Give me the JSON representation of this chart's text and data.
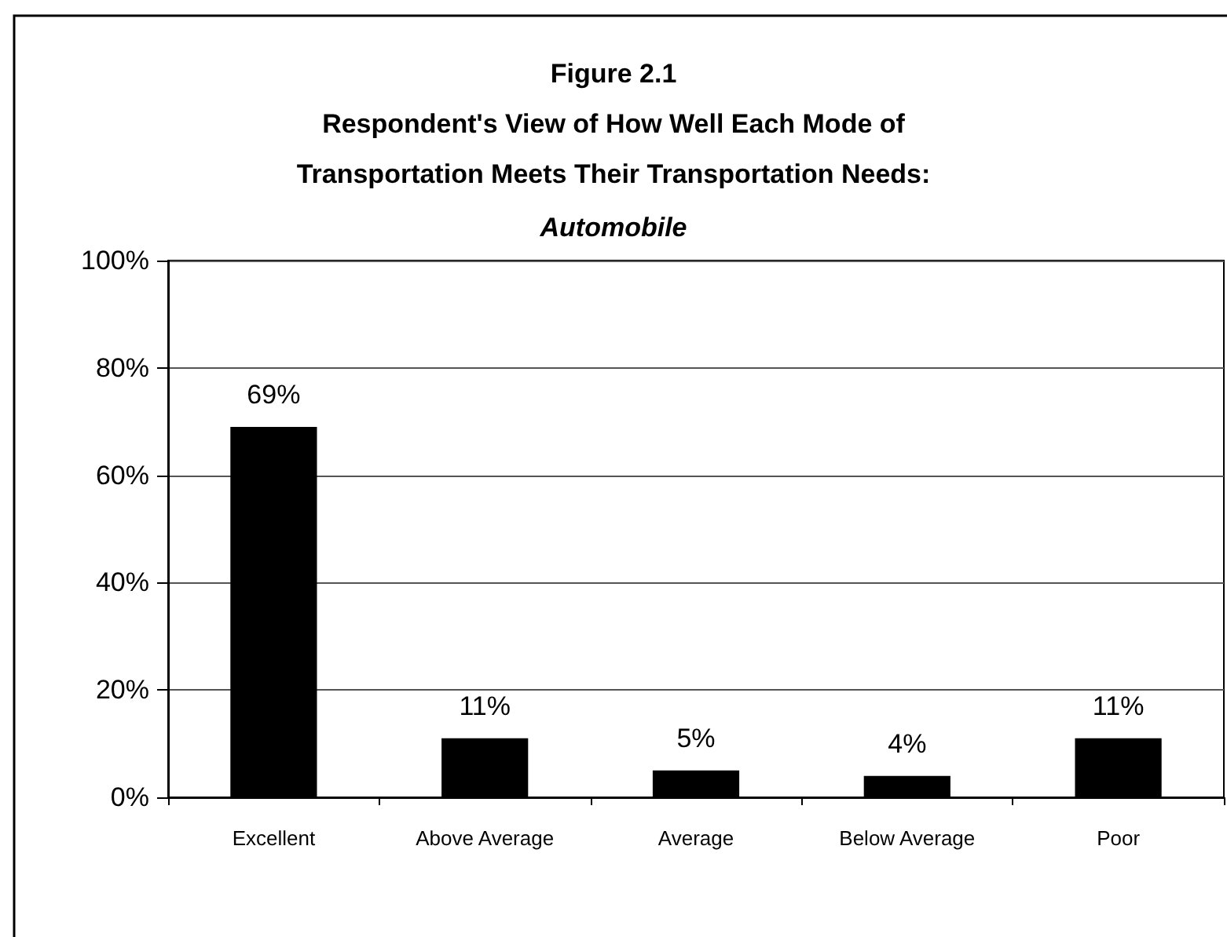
{
  "chart_data": {
    "type": "bar",
    "title": "Figure 2.1\nRespondent's View of How Well Each Mode of\nTransportation Meets Their Transportation Needs:",
    "subtitle": "Automobile",
    "categories": [
      "Excellent",
      "Above Average",
      "Average",
      "Below Average",
      "Poor"
    ],
    "values": [
      69,
      11,
      5,
      4,
      11
    ],
    "color": "#000000",
    "value_labels": [
      "69%",
      "11%",
      "5%",
      "4%",
      "11%"
    ],
    "ylim": [
      0,
      100
    ],
    "yticks": [
      {
        "value": 0,
        "label": "0%"
      },
      {
        "value": 20,
        "label": "20%"
      },
      {
        "value": 40,
        "label": "40%"
      },
      {
        "value": 60,
        "label": "60%"
      },
      {
        "value": 80,
        "label": "80%"
      },
      {
        "value": 100,
        "label": "100%"
      }
    ],
    "grid": "y"
  }
}
